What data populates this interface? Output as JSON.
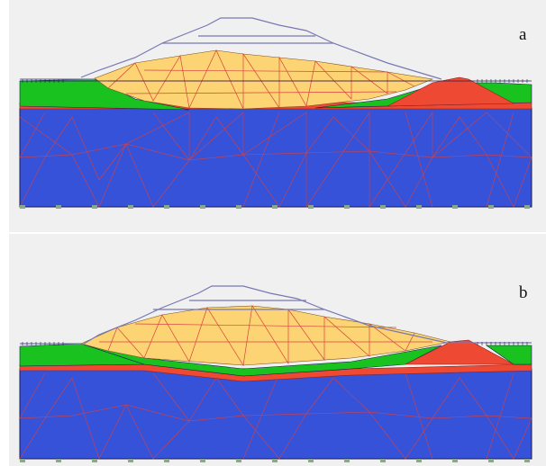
{
  "figure": {
    "panels": [
      {
        "id": "a",
        "label": "a"
      },
      {
        "id": "b",
        "label": "b"
      }
    ]
  },
  "colors": {
    "background": "#f0f0f0",
    "foundation": "#3552d8",
    "fill_core": "#fcd473",
    "green_zone": "#19c21e",
    "red_layer": "#ee4a33",
    "mesh_lines": "#d94040",
    "outline": "#7878b4",
    "dark_outline": "#1c1c52"
  }
}
